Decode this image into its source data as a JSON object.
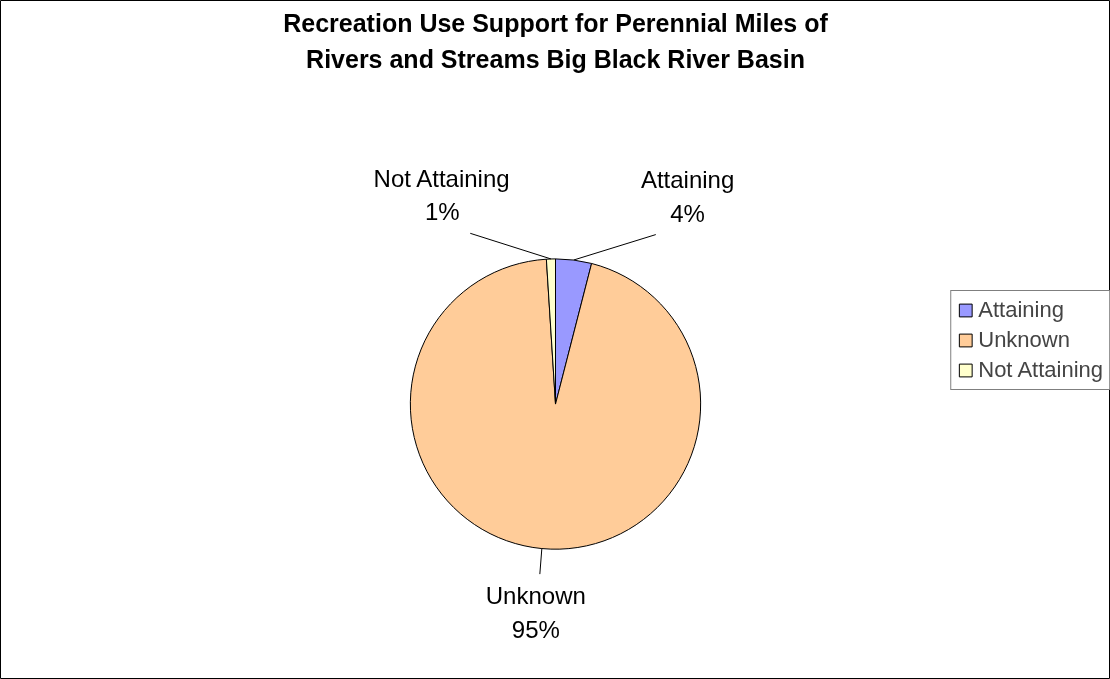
{
  "chart_data": {
    "type": "pie",
    "title": "Recreation Use Support for Perennial Miles of Rivers and Streams Big Black River Basin",
    "categories": [
      "Attaining",
      "Unknown",
      "Not Attaining"
    ],
    "values": [
      4,
      95,
      1
    ],
    "value_labels": [
      "4%",
      "95%",
      "1%"
    ],
    "colors": [
      "#9999ff",
      "#ffcc99",
      "#ffffcc"
    ],
    "legend": "right"
  }
}
